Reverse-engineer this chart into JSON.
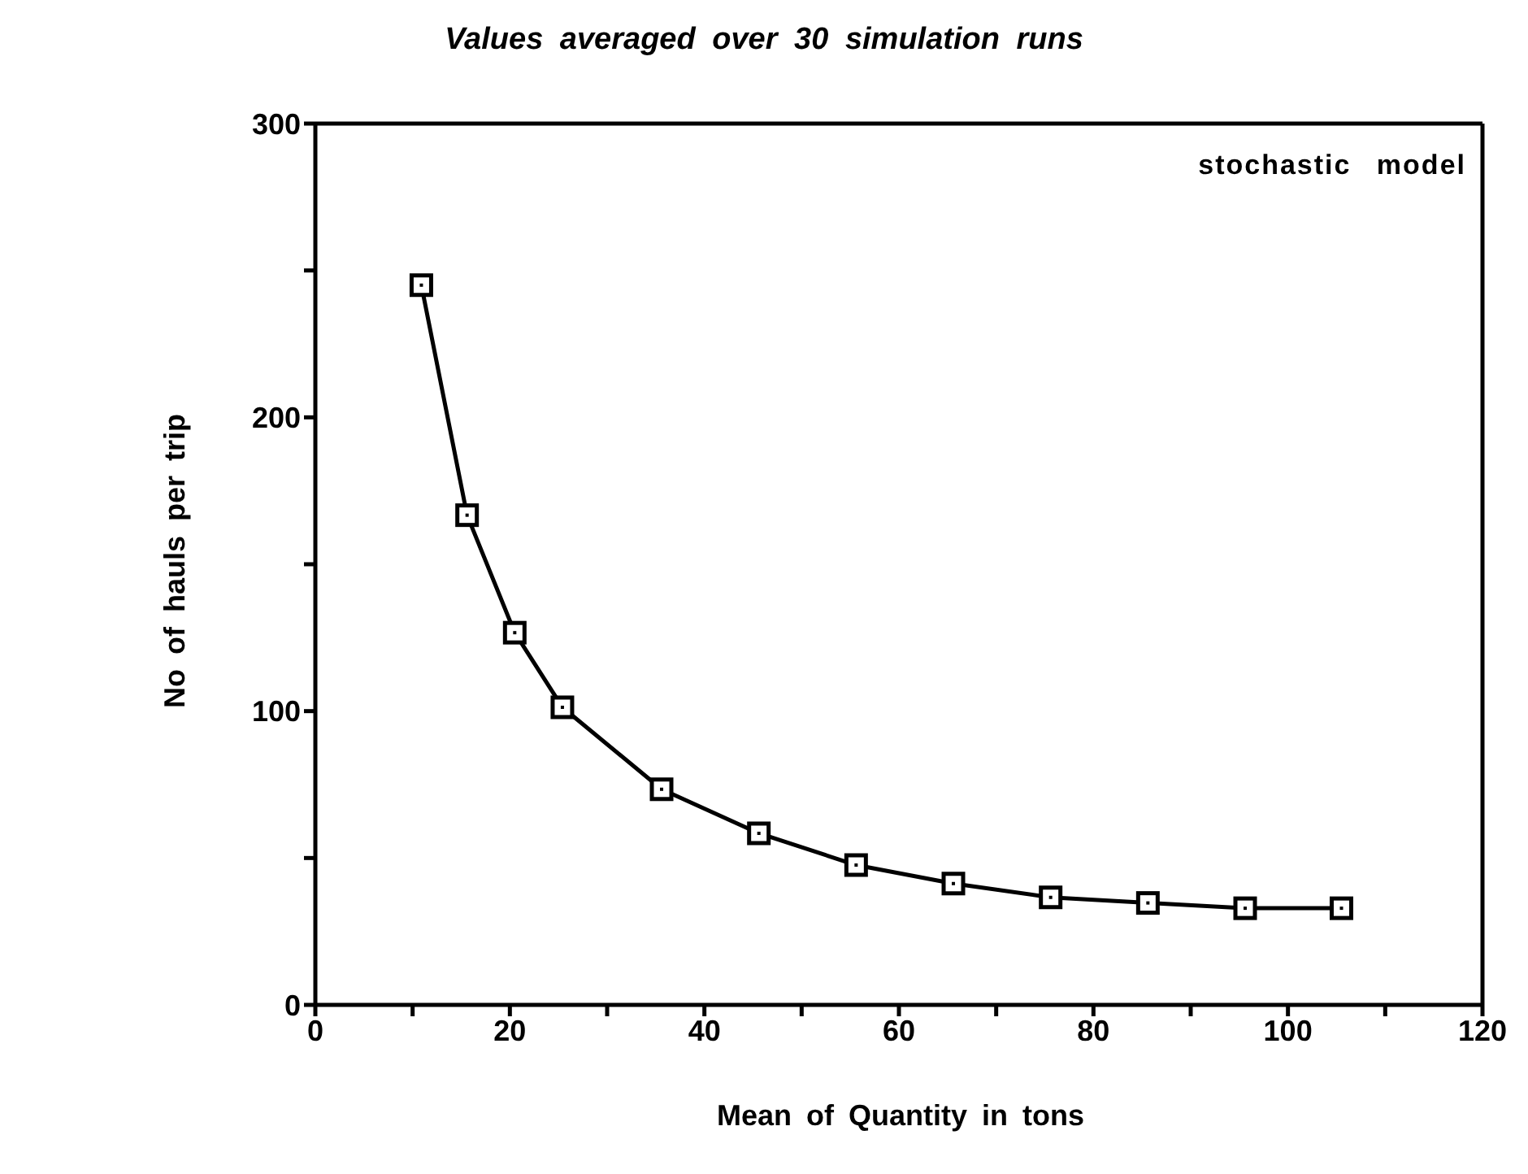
{
  "chart_data": {
    "type": "line",
    "title": "Values averaged over 30 simulation runs",
    "xlabel": "Mean of Quantity in tons",
    "ylabel": "No of hauls per trip",
    "annotations": [
      "stochastic model"
    ],
    "x": [
      10.9,
      15.6,
      20.5,
      25.4,
      35.6,
      45.6,
      55.6,
      65.6,
      75.6,
      85.6,
      95.6,
      105.5
    ],
    "series": [
      {
        "color": "#000000",
        "values": [
          245,
          166.7,
          126.7,
          101.3,
          73.4,
          58.4,
          47.6,
          41.3,
          36.6,
          34.7,
          32.9,
          32.9
        ]
      }
    ],
    "xlim": [
      0,
      120
    ],
    "xticks": [
      0,
      {
        "value": 10,
        "label": null
      },
      20,
      {
        "value": 30,
        "label": null
      },
      40,
      {
        "value": 50,
        "label": null
      },
      60,
      {
        "value": 70,
        "label": null
      },
      80,
      {
        "value": 90,
        "label": null
      },
      100,
      {
        "value": 110,
        "label": null
      },
      120
    ],
    "ylim": [
      0,
      300
    ],
    "yticks": [
      0,
      {
        "value": 50,
        "label": null
      },
      100,
      {
        "value": 150,
        "label": null
      },
      200,
      {
        "value": 250,
        "label": null
      },
      300
    ],
    "marker": "square",
    "line_style": "solid",
    "grid": false,
    "legend": false
  }
}
